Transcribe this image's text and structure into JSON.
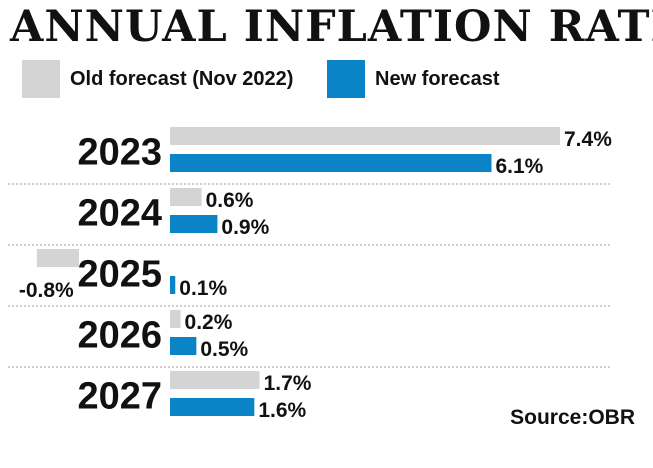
{
  "title": "ANNUAL INFLATION RATE",
  "source": "Source:OBR",
  "colors": {
    "old": "#d4d4d4",
    "new": "#0a84c6",
    "divider": "#bdbdbd",
    "text": "#111111"
  },
  "chart_data": {
    "type": "bar",
    "orientation": "horizontal",
    "categories": [
      "2023",
      "2024",
      "2025",
      "2026",
      "2027"
    ],
    "series": [
      {
        "name": "Old forecast (Nov 2022)",
        "values": [
          7.4,
          0.6,
          -0.8,
          0.2,
          1.7
        ],
        "labels": [
          "7.4%",
          "0.6%",
          "-0.8%",
          "0.2%",
          "1.7%"
        ]
      },
      {
        "name": "New forecast",
        "values": [
          6.1,
          0.9,
          0.1,
          0.5,
          1.6
        ],
        "labels": [
          "6.1%",
          "0.9%",
          "0.1%",
          "0.5%",
          "1.6%"
        ]
      }
    ],
    "grid": false,
    "legend": "top"
  }
}
